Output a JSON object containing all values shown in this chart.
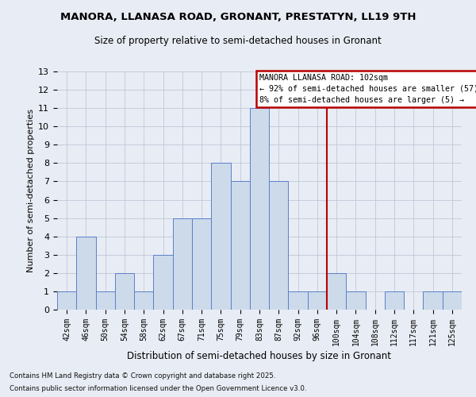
{
  "title": "MANORA, LLANASA ROAD, GRONANT, PRESTATYN, LL19 9TH",
  "subtitle": "Size of property relative to semi-detached houses in Gronant",
  "xlabel": "Distribution of semi-detached houses by size in Gronant",
  "ylabel": "Number of semi-detached properties",
  "footnote1": "Contains HM Land Registry data © Crown copyright and database right 2025.",
  "footnote2": "Contains public sector information licensed under the Open Government Licence v3.0.",
  "categories": [
    "42sqm",
    "46sqm",
    "50sqm",
    "54sqm",
    "58sqm",
    "62sqm",
    "67sqm",
    "71sqm",
    "75sqm",
    "79sqm",
    "83sqm",
    "87sqm",
    "92sqm",
    "96sqm",
    "100sqm",
    "104sqm",
    "108sqm",
    "112sqm",
    "117sqm",
    "121sqm",
    "125sqm"
  ],
  "values": [
    1,
    4,
    1,
    2,
    1,
    3,
    5,
    5,
    8,
    7,
    11,
    7,
    1,
    1,
    2,
    1,
    0,
    1,
    0,
    1,
    1
  ],
  "bar_color": "#ccdaea",
  "bar_edge_color": "#5b80c8",
  "grid_color": "#c0c8d8",
  "background_color": "#e8ecf4",
  "vline_x": 13.5,
  "vline_color": "#bb0000",
  "legend_title": "MANORA LLANASA ROAD: 102sqm",
  "legend_line1": "← 92% of semi-detached houses are smaller (57)",
  "legend_line2": "8% of semi-detached houses are larger (5) →",
  "legend_box_edge_color": "#bb0000",
  "ylim_max": 13,
  "yticks": [
    0,
    1,
    2,
    3,
    4,
    5,
    6,
    7,
    8,
    9,
    10,
    11,
    12,
    13
  ]
}
